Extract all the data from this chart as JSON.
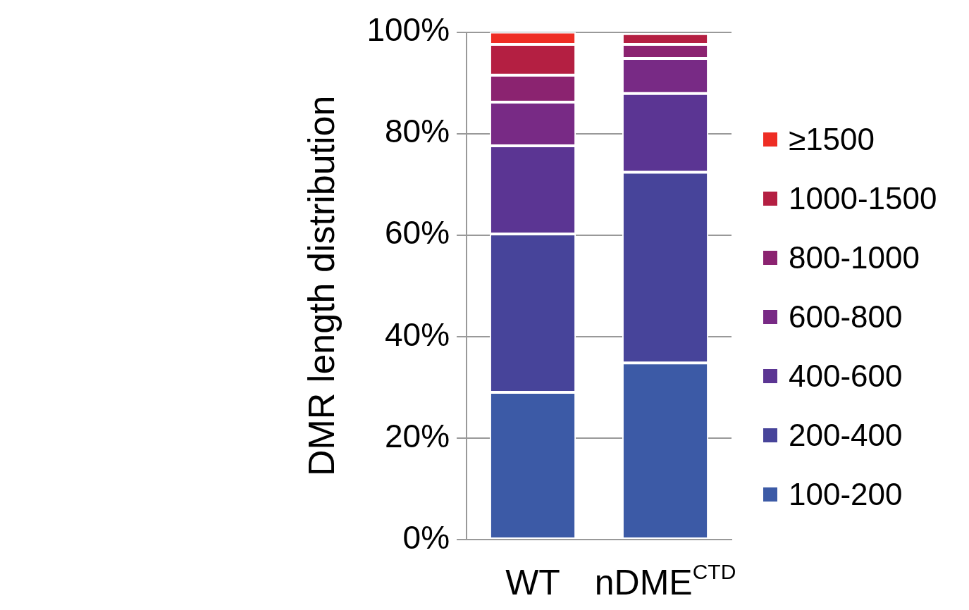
{
  "chart_data": {
    "type": "bar",
    "stacked": true,
    "ylabel": "DMR length distribution",
    "categories": [
      "WT",
      "nDME$^{CTD}$"
    ],
    "series": [
      {
        "name": "100-200",
        "color": "#3c5aa6",
        "values": [
          29.0,
          34.8
        ]
      },
      {
        "name": "200-400",
        "color": "#47449a",
        "values": [
          31.2,
          37.6
        ]
      },
      {
        "name": "400-600",
        "color": "#5b3593",
        "values": [
          17.4,
          15.5
        ]
      },
      {
        "name": "600-800",
        "color": "#782a85",
        "values": [
          8.6,
          6.9
        ]
      },
      {
        "name": "800-1000",
        "color": "#8b2370",
        "values": [
          5.3,
          2.8
        ]
      },
      {
        "name": "1000-1500",
        "color": "#b41f42",
        "values": [
          6.1,
          2.1
        ]
      },
      {
        "name": "≥1500",
        "color": "#ee2d24",
        "values": [
          2.4,
          0
        ]
      }
    ],
    "ylim": [
      0,
      100
    ],
    "yticks": [
      {
        "value": 0,
        "label": "0%"
      },
      {
        "value": 20,
        "label": "20%"
      },
      {
        "value": 40,
        "label": "40%"
      },
      {
        "value": 60,
        "label": "60%"
      },
      {
        "value": 80,
        "label": "80%"
      },
      {
        "value": 100,
        "label": "100%"
      }
    ],
    "grid": "y",
    "legend": "right"
  }
}
